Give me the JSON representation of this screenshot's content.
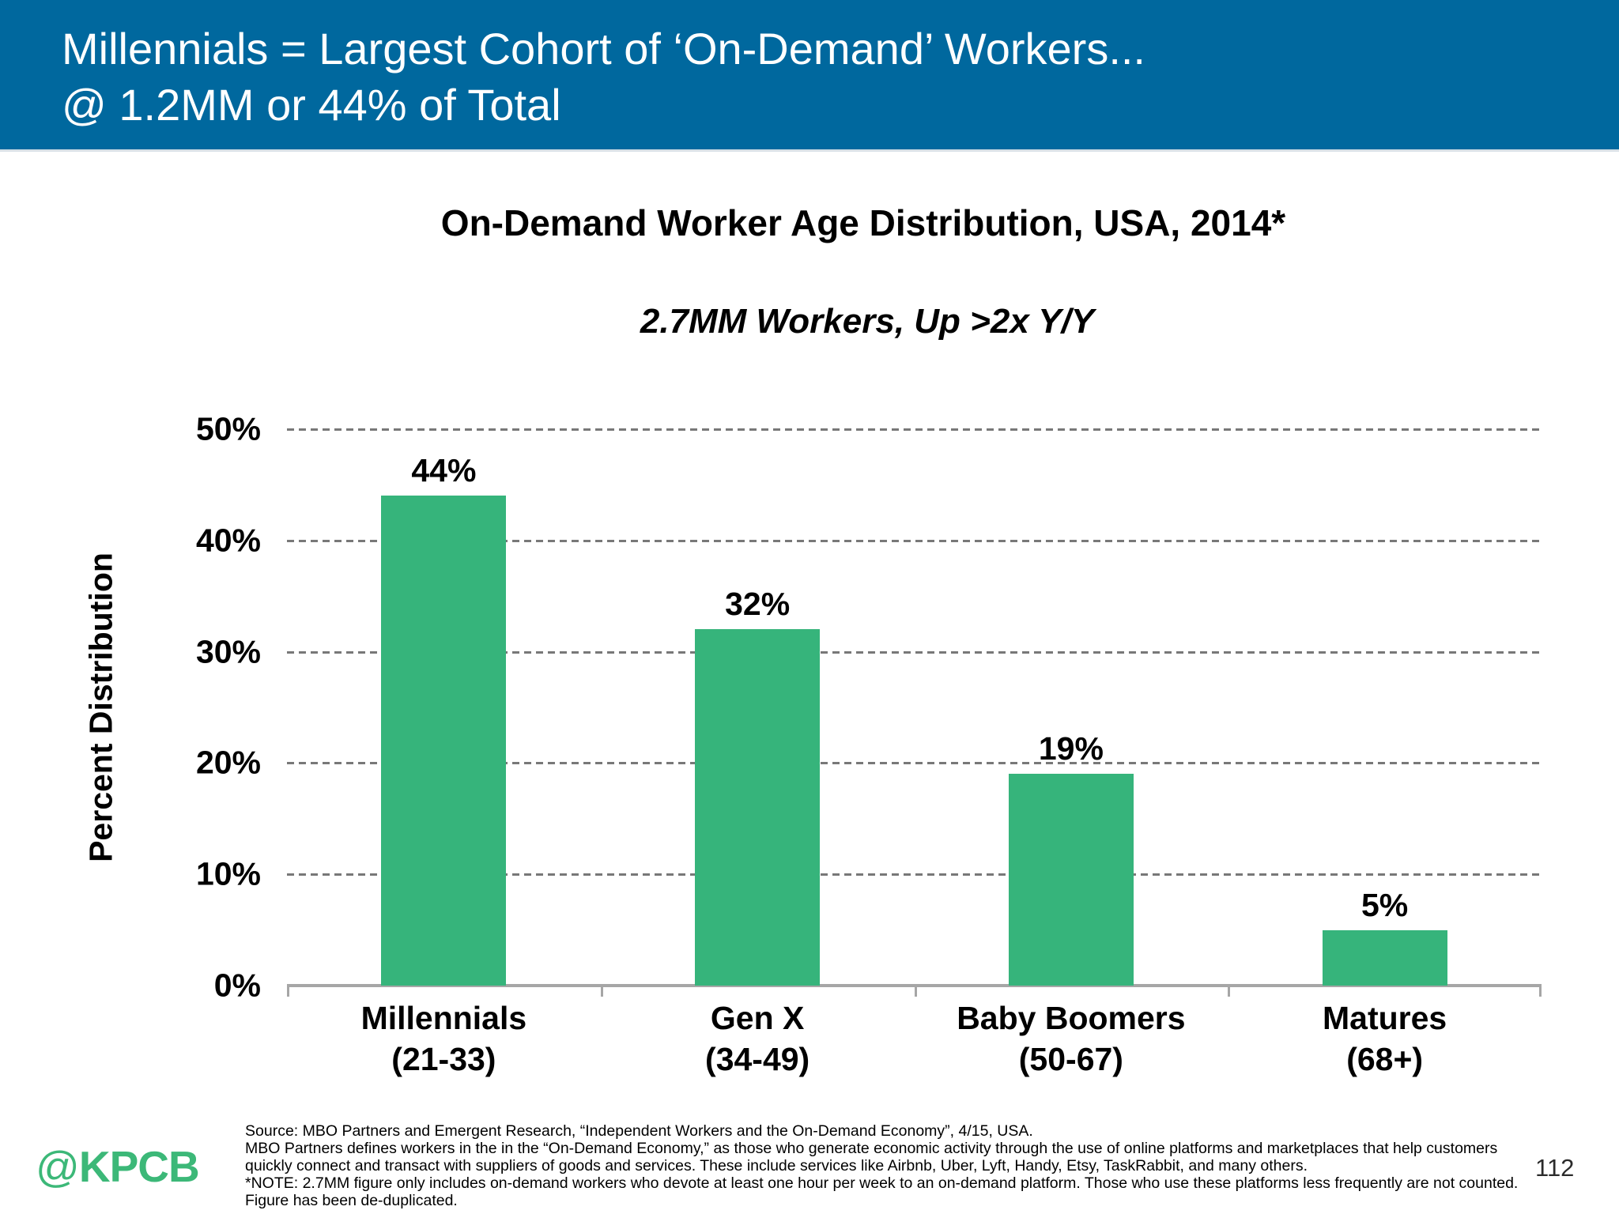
{
  "colors": {
    "banner_blue": "#00689E",
    "bar_green": "#36B47B",
    "logo_green": "#3CB878",
    "grid_gray": "#787878",
    "axis_gray": "#A6A6A6"
  },
  "header": {
    "line1": "Millennials = Largest Cohort of ‘On-Demand’ Workers...",
    "line2": "@ 1.2MM or 44% of Total"
  },
  "chart_data": {
    "type": "bar",
    "title": "On-Demand Worker Age Distribution, USA, 2014*",
    "subtitle": "2.7MM Workers, Up >2x Y/Y",
    "xlabel": "",
    "ylabel": "Percent Distribution",
    "ylim": [
      0,
      50
    ],
    "grid": "horizontal-dashed",
    "legend": "none",
    "categories": [
      "Millennials",
      "Gen X",
      "Baby Boomers",
      "Matures"
    ],
    "category_sublabels": [
      "(21-33)",
      "(34-49)",
      "(50-67)",
      "(68+)"
    ],
    "values": [
      44,
      32,
      19,
      5
    ],
    "value_labels": [
      "44%",
      "32%",
      "19%",
      "5%"
    ],
    "yticks": [
      0,
      10,
      20,
      30,
      40,
      50
    ],
    "ytick_labels": [
      "0%",
      "10%",
      "20%",
      "30%",
      "40%",
      "50%"
    ]
  },
  "footer": {
    "source": "Source:  MBO Partners and Emergent Research, “Independent Workers and the On-Demand Economy”, 4/15, USA.",
    "definition": "MBO Partners defines workers in the in the “On-Demand Economy,” as those who generate economic activity through the use of online platforms and marketplaces that help customers quickly connect and transact with suppliers of goods and services. These include services like Airbnb, Uber, Lyft, Handy, Etsy, TaskRabbit, and many others.",
    "note": "*NOTE: 2.7MM figure only includes on-demand workers who devote at least one hour per week to an on-demand platform. Those who use these platforms less frequently are not counted. Figure has been de-duplicated."
  },
  "logo": {
    "at": "@",
    "text": "KPCB"
  },
  "page_number": "112"
}
